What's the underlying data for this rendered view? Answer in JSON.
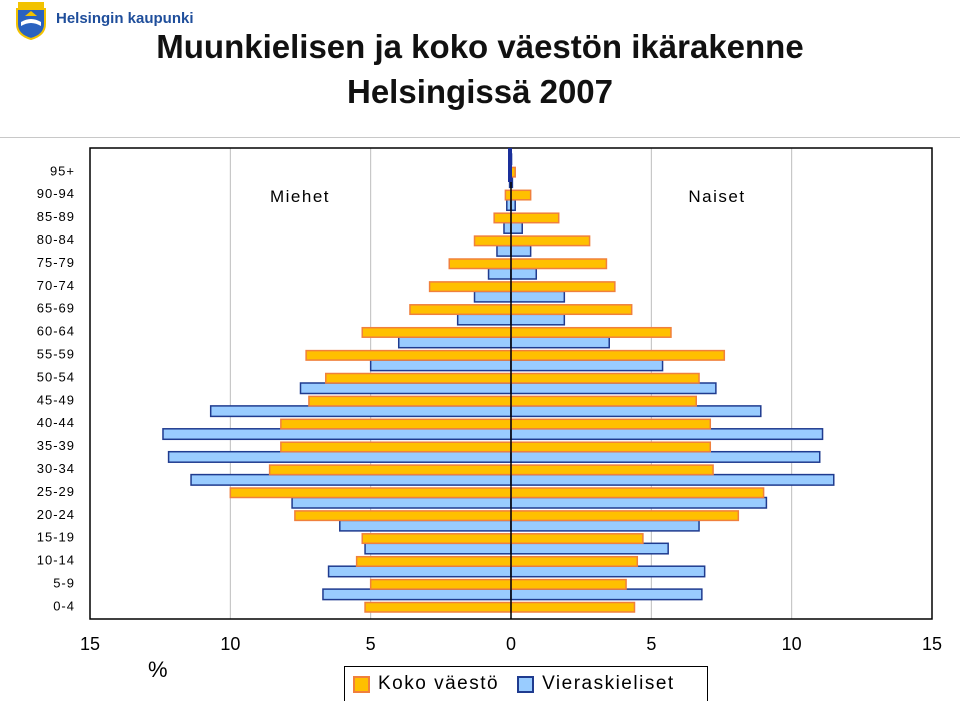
{
  "header": {
    "brand": "Helsingin kaupunki",
    "title_line1": "Muunkielisen ja koko väestön ikärakenne",
    "title_line2": "Helsingissä 2007"
  },
  "legend": {
    "koko": "Koko väestö",
    "vieraskieliset": "Vieraskieliset"
  },
  "colors": {
    "koko_fill": "#ffc000",
    "koko_border": "#f0803c",
    "vier_fill": "#99ccff",
    "vier_border": "#1f3b8f"
  },
  "chart_data": {
    "type": "bar",
    "orientation": "horizontal",
    "subtype": "population-pyramid",
    "ylabel_unit": "%",
    "left_label": "Miehet",
    "right_label": "Naiset",
    "xlim": [
      -15,
      15
    ],
    "x_ticks": [
      "15",
      "10",
      "5",
      "0",
      "5",
      "10",
      "15"
    ],
    "categories": [
      "0-4",
      "5-9",
      "10-14",
      "15-19",
      "20-24",
      "25-29",
      "30-34",
      "35-39",
      "40-44",
      "45-49",
      "50-54",
      "55-59",
      "60-64",
      "65-69",
      "70-74",
      "75-79",
      "80-84",
      "85-89",
      "90-94",
      "95+"
    ],
    "series": [
      {
        "name": "Koko väestö",
        "men": [
          5.2,
          5.0,
          5.5,
          5.3,
          7.7,
          10.0,
          8.6,
          8.2,
          8.2,
          7.2,
          6.6,
          7.3,
          5.3,
          3.6,
          2.9,
          2.2,
          1.3,
          0.6,
          0.2,
          0.05
        ],
        "women": [
          4.4,
          4.1,
          4.5,
          4.7,
          8.1,
          9.0,
          7.2,
          7.1,
          7.1,
          6.6,
          6.7,
          7.6,
          5.7,
          4.3,
          3.7,
          3.4,
          2.8,
          1.7,
          0.7,
          0.15
        ]
      },
      {
        "name": "Vieraskieliset",
        "men": [
          6.7,
          6.5,
          5.2,
          6.1,
          7.8,
          11.4,
          12.2,
          12.4,
          10.7,
          7.5,
          5.0,
          4.0,
          1.9,
          1.3,
          0.8,
          0.5,
          0.25,
          0.15,
          0.05,
          0.02
        ],
        "women": [
          6.8,
          6.9,
          5.6,
          6.7,
          9.1,
          11.5,
          11.0,
          11.1,
          8.9,
          7.3,
          5.4,
          3.5,
          1.9,
          1.9,
          0.9,
          0.7,
          0.4,
          0.15,
          0.05,
          0.02
        ]
      }
    ]
  }
}
